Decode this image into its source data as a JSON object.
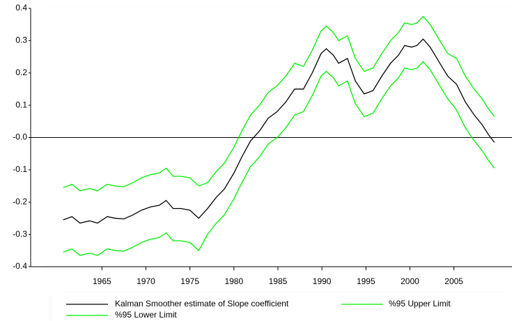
{
  "chart_data": {
    "type": "line",
    "x": [
      1960.6,
      1961.6,
      1962.5,
      1963.6,
      1964.5,
      1965.6,
      1966.5,
      1967.5,
      1968.5,
      1969.5,
      1970.5,
      1971.5,
      1972.3,
      1973.1,
      1974.0,
      1975.0,
      1976.0,
      1977.0,
      1978.0,
      1978.9,
      1980.0,
      1980.9,
      1981.9,
      1982.9,
      1983.9,
      1984.9,
      1985.9,
      1986.9,
      1987.9,
      1988.9,
      1989.9,
      1990.5,
      1991.3,
      1991.9,
      1992.9,
      1993.8,
      1994.8,
      1995.8,
      1996.8,
      1997.8,
      1998.7,
      1999.4,
      2000.2,
      2000.8,
      2001.5,
      2002.3,
      2003.4,
      2004.3,
      2005.3,
      2006.3,
      2007.3,
      2008.2,
      2008.9,
      2009.6
    ],
    "series": [
      {
        "name": "Kalman Smoother estimate of Slope coefficient",
        "color": "#000000",
        "values": [
          -0.255,
          -0.245,
          -0.265,
          -0.258,
          -0.265,
          -0.245,
          -0.25,
          -0.252,
          -0.24,
          -0.225,
          -0.215,
          -0.21,
          -0.195,
          -0.22,
          -0.22,
          -0.225,
          -0.25,
          -0.22,
          -0.185,
          -0.16,
          -0.11,
          -0.06,
          -0.01,
          0.02,
          0.06,
          0.08,
          0.11,
          0.15,
          0.15,
          0.2,
          0.26,
          0.275,
          0.255,
          0.23,
          0.245,
          0.175,
          0.135,
          0.145,
          0.19,
          0.23,
          0.255,
          0.285,
          0.28,
          0.285,
          0.305,
          0.28,
          0.23,
          0.19,
          0.165,
          0.11,
          0.07,
          0.04,
          0.01,
          -0.015
        ]
      },
      {
        "name": "%95 Upper Limit",
        "color": "#00ee00",
        "values": [
          -0.155,
          -0.145,
          -0.165,
          -0.158,
          -0.165,
          -0.145,
          -0.15,
          -0.152,
          -0.14,
          -0.125,
          -0.115,
          -0.11,
          -0.095,
          -0.12,
          -0.12,
          -0.125,
          -0.15,
          -0.14,
          -0.105,
          -0.08,
          -0.03,
          0.02,
          0.07,
          0.1,
          0.14,
          0.16,
          0.19,
          0.23,
          0.22,
          0.27,
          0.33,
          0.345,
          0.325,
          0.3,
          0.315,
          0.245,
          0.205,
          0.215,
          0.26,
          0.3,
          0.325,
          0.355,
          0.35,
          0.355,
          0.375,
          0.35,
          0.3,
          0.26,
          0.245,
          0.19,
          0.15,
          0.12,
          0.09,
          0.065
        ]
      },
      {
        "name": "%95 Lower Limit",
        "color": "#00ee00",
        "values": [
          -0.355,
          -0.345,
          -0.365,
          -0.358,
          -0.365,
          -0.345,
          -0.35,
          -0.352,
          -0.34,
          -0.325,
          -0.315,
          -0.31,
          -0.295,
          -0.32,
          -0.32,
          -0.325,
          -0.35,
          -0.3,
          -0.265,
          -0.24,
          -0.19,
          -0.14,
          -0.09,
          -0.06,
          -0.02,
          0.0,
          0.03,
          0.07,
          0.08,
          0.13,
          0.19,
          0.205,
          0.185,
          0.16,
          0.175,
          0.105,
          0.065,
          0.075,
          0.12,
          0.16,
          0.185,
          0.215,
          0.21,
          0.215,
          0.235,
          0.21,
          0.16,
          0.12,
          0.085,
          0.03,
          -0.01,
          -0.04,
          -0.07,
          -0.095
        ]
      }
    ],
    "xlim": [
      1956.9,
      2011.6
    ],
    "xticks": [
      1965,
      1970,
      1975,
      1980,
      1985,
      1990,
      1995,
      2000,
      2005
    ],
    "ylim": [
      -0.4,
      0.4
    ],
    "yticks": [
      0.4,
      0.3,
      0.2,
      0.1,
      {
        "value": 0,
        "label": "-0.0"
      },
      -0.1,
      -0.2,
      -0.3,
      -0.4
    ],
    "reference_line": 0,
    "legend": "bottom"
  }
}
